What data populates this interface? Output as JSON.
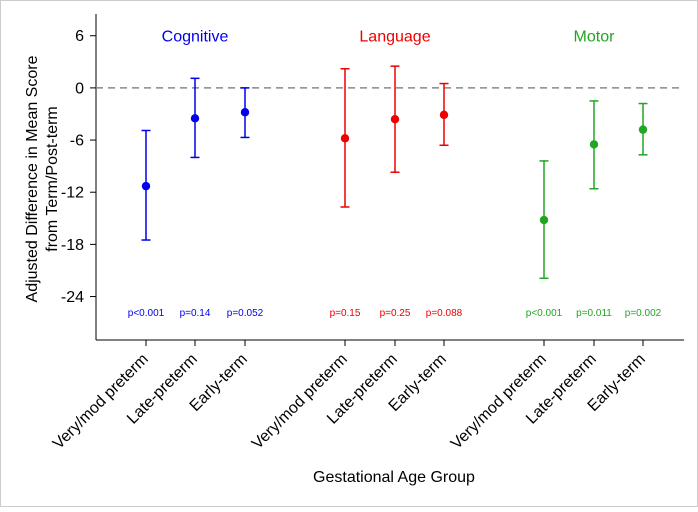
{
  "chart_data": {
    "type": "scatter",
    "subtype": "point-estimate-with-95ci",
    "title": "",
    "xlabel": "Gestational Age Group",
    "ylabel": "Adjusted Difference in Mean Score from Term/Post-term",
    "ylabel_lines": [
      "Adjusted Difference in Mean Score",
      "from Term/Post-term"
    ],
    "ylim": [
      -29,
      8.5
    ],
    "yticks": [
      6,
      0,
      -6,
      -12,
      -18,
      -24
    ],
    "ytick_labels": [
      "6",
      "0",
      "-6",
      "-12",
      "-18",
      "-24"
    ],
    "reference_line": {
      "y": 0,
      "style": "dashed",
      "color": "#888888"
    },
    "grid": false,
    "legend": "none",
    "groups": [
      {
        "name": "Cognitive",
        "color": "#0000ee",
        "categories": [
          "Very/mod preterm",
          "Late-preterm",
          "Early-term"
        ],
        "estimates": [
          -11.3,
          -3.5,
          -2.8
        ],
        "ci_low": [
          -17.5,
          -8.0,
          -5.7
        ],
        "ci_high": [
          -4.9,
          1.1,
          0.0
        ],
        "p_values": [
          "p<0.001",
          "p=0.14",
          "p=0.052"
        ]
      },
      {
        "name": "Language",
        "color": "#ee0000",
        "categories": [
          "Very/mod preterm",
          "Late-preterm",
          "Early-term"
        ],
        "estimates": [
          -5.8,
          -3.6,
          -3.1
        ],
        "ci_low": [
          -13.7,
          -9.7,
          -6.6
        ],
        "ci_high": [
          2.2,
          2.5,
          0.5
        ],
        "p_values": [
          "p=0.15",
          "p=0.25",
          "p=0.088"
        ]
      },
      {
        "name": "Motor",
        "color": "#22a522",
        "categories": [
          "Very/mod preterm",
          "Late-preterm",
          "Early-term"
        ],
        "estimates": [
          -15.2,
          -6.5,
          -4.8
        ],
        "ci_low": [
          -21.9,
          -11.6,
          -7.7
        ],
        "ci_high": [
          -8.4,
          -1.5,
          -1.8
        ],
        "p_values": [
          "p<0.001",
          "p=0.011",
          "p=0.002"
        ]
      }
    ]
  }
}
